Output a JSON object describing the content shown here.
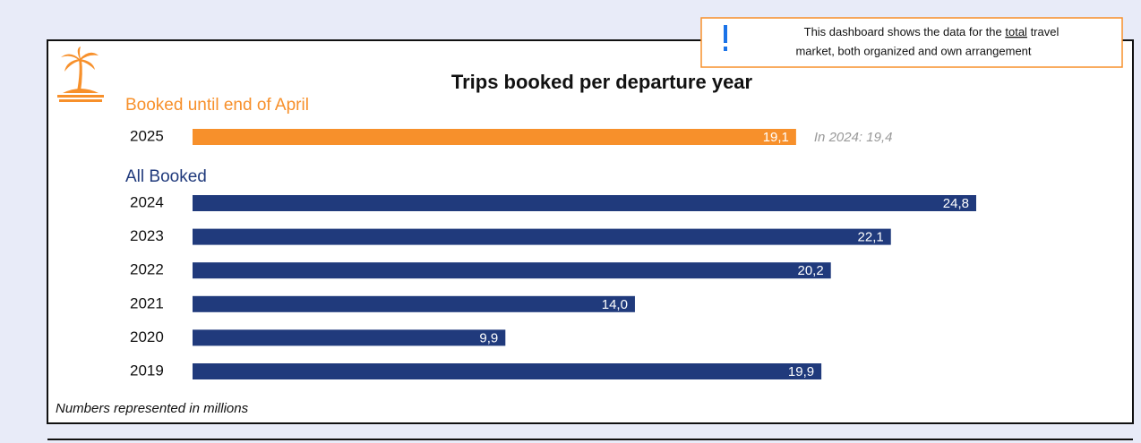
{
  "notice": {
    "before": "This dashboard shows the data for the ",
    "emphasis": "total",
    "after": " travel",
    "line2": "market, both organized and own arrangement"
  },
  "chart_data": {
    "type": "bar",
    "title": "Trips booked per departure year",
    "groups": [
      {
        "name": "Booked until end of April",
        "color": "#f7902b",
        "categories": [
          "2025"
        ],
        "values": [
          19.1
        ],
        "value_labels": [
          "19,1"
        ],
        "annotation": "In 2024: 19,4"
      },
      {
        "name": "All Booked",
        "color": "#203a7c",
        "categories": [
          "2024",
          "2023",
          "2022",
          "2021",
          "2020",
          "2019"
        ],
        "values": [
          24.8,
          22.1,
          20.2,
          14.0,
          9.9,
          19.9
        ],
        "value_labels": [
          "24,8",
          "22,1",
          "20,2",
          "14,0",
          "9,9",
          "19,9"
        ]
      }
    ],
    "footnote": "Numbers represented in millions"
  }
}
